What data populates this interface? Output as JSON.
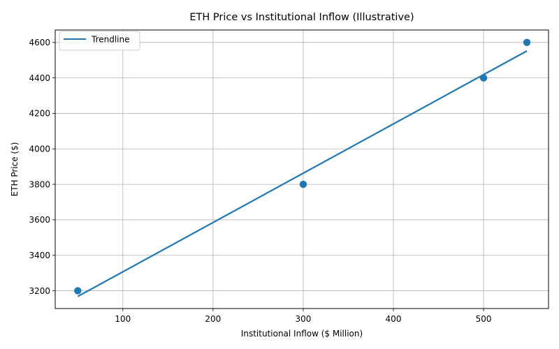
{
  "chart_data": {
    "type": "scatter",
    "title": "ETH Price vs Institutional Inflow (Illustrative)",
    "xlabel": "Institutional Inflow ($ Million)",
    "ylabel": "ETH Price ($)",
    "xlim": [
      25,
      572
    ],
    "ylim": [
      3100,
      4670
    ],
    "xticks": [
      100,
      200,
      300,
      400,
      500
    ],
    "yticks": [
      3200,
      3400,
      3600,
      3800,
      4000,
      4200,
      4400,
      4600
    ],
    "grid": true,
    "legend_position": "top-left",
    "points": [
      {
        "x": 50,
        "y": 3200
      },
      {
        "x": 300,
        "y": 3800
      },
      {
        "x": 500,
        "y": 4400
      },
      {
        "x": 548,
        "y": 4600
      }
    ],
    "trendline": {
      "name": "Trendline",
      "x": [
        50,
        548
      ],
      "y": [
        3168,
        4552
      ]
    },
    "colors": {
      "series": "#1f77b4",
      "grid": "#b0b0b0"
    }
  }
}
